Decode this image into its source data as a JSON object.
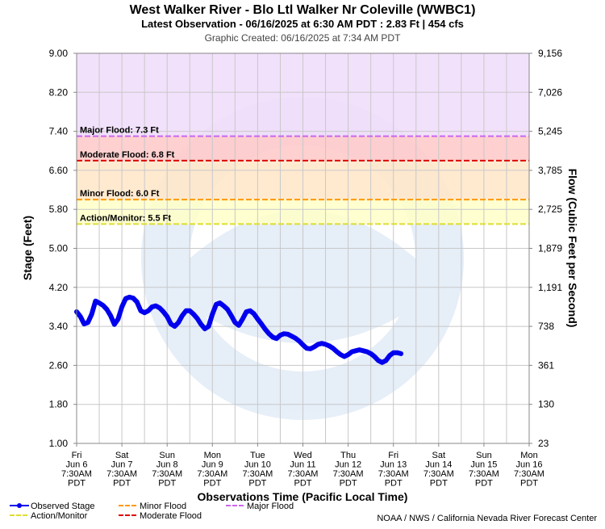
{
  "chart_data": {
    "type": "line",
    "title": "West Walker River - Blo Ltl Walker Nr Coleville (WWBC1)",
    "subtitle": "Latest Observation - 06/16/2025 at 6:30 AM PDT : 2.83 Ft | 454 cfs",
    "created": "Graphic Created: 06/16/2025 at 7:34 AM PDT",
    "xlabel": "Observations Time (Pacific Local Time)",
    "ylabel": "Stage (Feet)",
    "y2label": "Flow (Cubic Feet per Second)",
    "ylim": [
      1.0,
      9.0
    ],
    "xlim": [
      0,
      240
    ],
    "y_ticks": [
      "1.00",
      "1.80",
      "2.60",
      "3.40",
      "4.20",
      "5.00",
      "5.80",
      "6.60",
      "7.40",
      "8.20",
      "9.00"
    ],
    "y2_ticks": [
      "23",
      "130",
      "361",
      "738",
      "1,191",
      "1,879",
      "2,725",
      "3,785",
      "5,245",
      "7,026",
      "9,156"
    ],
    "x_ticks": [
      {
        "day": "Fri",
        "date": "Jun 6",
        "time": "7:30AM",
        "tz": "PDT",
        "h": 0
      },
      {
        "day": "Sat",
        "date": "Jun 7",
        "time": "7:30AM",
        "tz": "PDT",
        "h": 24
      },
      {
        "day": "Sun",
        "date": "Jun 8",
        "time": "7:30AM",
        "tz": "PDT",
        "h": 48
      },
      {
        "day": "Mon",
        "date": "Jun 9",
        "time": "7:30AM",
        "tz": "PDT",
        "h": 72
      },
      {
        "day": "Tue",
        "date": "Jun 10",
        "time": "7:30AM",
        "tz": "PDT",
        "h": 96
      },
      {
        "day": "Wed",
        "date": "Jun 11",
        "time": "7:30AM",
        "tz": "PDT",
        "h": 120
      },
      {
        "day": "Thu",
        "date": "Jun 12",
        "time": "7:30AM",
        "tz": "PDT",
        "h": 144
      },
      {
        "day": "Fri",
        "date": "Jun 13",
        "time": "7:30AM",
        "tz": "PDT",
        "h": 168
      },
      {
        "day": "Sat",
        "date": "Jun 14",
        "time": "7:30AM",
        "tz": "PDT",
        "h": 192
      },
      {
        "day": "Sun",
        "date": "Jun 15",
        "time": "7:30AM",
        "tz": "PDT",
        "h": 216
      },
      {
        "day": "Mon",
        "date": "Jun 16",
        "time": "7:30AM",
        "tz": "PDT",
        "h": 240
      }
    ],
    "bands": [
      {
        "name": "Major Flood",
        "from": 7.3,
        "to": 9.0,
        "color": "#f0dcfa"
      },
      {
        "name": "Moderate Flood",
        "from": 6.8,
        "to": 7.3,
        "color": "#ffc8c8"
      },
      {
        "name": "Minor Flood",
        "from": 6.0,
        "to": 6.8,
        "color": "#ffe6c8"
      },
      {
        "name": "Action/Monitor",
        "from": 5.5,
        "to": 6.0,
        "color": "#ffffc8"
      }
    ],
    "thresholds": [
      {
        "label": "Major Flood: 7.3 Ft",
        "value": 7.3,
        "color": "#cc66ee"
      },
      {
        "label": "Moderate Flood: 6.8 Ft",
        "value": 6.8,
        "color": "#dd0000"
      },
      {
        "label": "Minor Flood: 6.0 Ft",
        "value": 6.0,
        "color": "#ff9900"
      },
      {
        "label": "Action/Monitor: 5.5 Ft",
        "value": 5.5,
        "color": "#dddd33"
      }
    ],
    "series": [
      {
        "name": "Observed Stage",
        "color": "#0000ee",
        "points": [
          [
            0,
            3.7
          ],
          [
            2,
            3.6
          ],
          [
            4,
            3.45
          ],
          [
            6,
            3.48
          ],
          [
            8,
            3.65
          ],
          [
            10,
            3.92
          ],
          [
            12,
            3.88
          ],
          [
            14,
            3.83
          ],
          [
            16,
            3.75
          ],
          [
            18,
            3.62
          ],
          [
            20,
            3.44
          ],
          [
            22,
            3.55
          ],
          [
            24,
            3.8
          ],
          [
            26,
            3.97
          ],
          [
            28,
            4.0
          ],
          [
            30,
            3.98
          ],
          [
            32,
            3.9
          ],
          [
            34,
            3.72
          ],
          [
            36,
            3.68
          ],
          [
            38,
            3.72
          ],
          [
            40,
            3.8
          ],
          [
            42,
            3.82
          ],
          [
            44,
            3.78
          ],
          [
            46,
            3.7
          ],
          [
            48,
            3.6
          ],
          [
            50,
            3.45
          ],
          [
            52,
            3.4
          ],
          [
            54,
            3.48
          ],
          [
            56,
            3.62
          ],
          [
            58,
            3.72
          ],
          [
            60,
            3.72
          ],
          [
            62,
            3.65
          ],
          [
            64,
            3.56
          ],
          [
            66,
            3.44
          ],
          [
            68,
            3.35
          ],
          [
            70,
            3.4
          ],
          [
            72,
            3.65
          ],
          [
            74,
            3.85
          ],
          [
            76,
            3.88
          ],
          [
            78,
            3.82
          ],
          [
            80,
            3.75
          ],
          [
            82,
            3.62
          ],
          [
            84,
            3.48
          ],
          [
            86,
            3.42
          ],
          [
            88,
            3.55
          ],
          [
            90,
            3.7
          ],
          [
            92,
            3.72
          ],
          [
            94,
            3.66
          ],
          [
            96,
            3.55
          ],
          [
            98,
            3.45
          ],
          [
            100,
            3.34
          ],
          [
            102,
            3.25
          ],
          [
            104,
            3.18
          ],
          [
            106,
            3.15
          ],
          [
            108,
            3.22
          ],
          [
            110,
            3.25
          ],
          [
            112,
            3.24
          ],
          [
            114,
            3.2
          ],
          [
            116,
            3.16
          ],
          [
            118,
            3.1
          ],
          [
            120,
            3.02
          ],
          [
            122,
            2.95
          ],
          [
            124,
            2.94
          ],
          [
            126,
            2.98
          ],
          [
            128,
            3.03
          ],
          [
            130,
            3.05
          ],
          [
            132,
            3.03
          ],
          [
            134,
            3.0
          ],
          [
            136,
            2.95
          ],
          [
            138,
            2.88
          ],
          [
            140,
            2.82
          ],
          [
            142,
            2.78
          ],
          [
            144,
            2.82
          ],
          [
            146,
            2.88
          ],
          [
            148,
            2.9
          ],
          [
            150,
            2.92
          ],
          [
            152,
            2.9
          ],
          [
            154,
            2.88
          ],
          [
            156,
            2.84
          ],
          [
            158,
            2.78
          ],
          [
            160,
            2.7
          ],
          [
            162,
            2.66
          ],
          [
            164,
            2.7
          ],
          [
            166,
            2.8
          ],
          [
            168,
            2.86
          ],
          [
            170,
            2.86
          ],
          [
            172,
            2.84
          ]
        ]
      }
    ],
    "legend": [
      {
        "name": "Observed Stage",
        "color": "#0000ee",
        "kind": "dot-line"
      },
      {
        "name": "Action/Monitor",
        "color": "#dddd33",
        "kind": "dash"
      },
      {
        "name": "Minor Flood",
        "color": "#ff9900",
        "kind": "dash"
      },
      {
        "name": "Moderate Flood",
        "color": "#dd0000",
        "kind": "dash"
      },
      {
        "name": "Major Flood",
        "color": "#cc66ee",
        "kind": "dash"
      }
    ],
    "credit": "NOAA / NWS / California Nevada River Forecast Center",
    "grid": true
  }
}
